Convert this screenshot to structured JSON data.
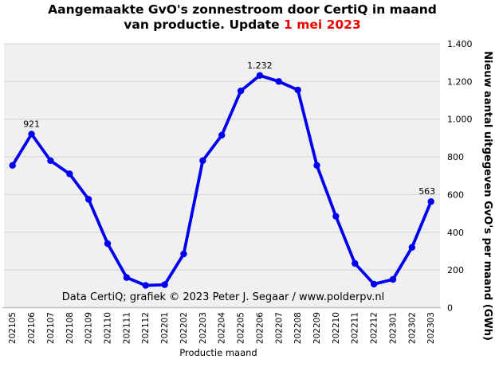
{
  "title": {
    "line1": "Aangemaakte GvO's zonnestroom door CertiQ in maand",
    "line2_prefix": "van productie. Update ",
    "line2_highlight": "1 mei 2023"
  },
  "annotation": "Data CertiQ; grafiek © 2023 Peter J. Segaar / www.polderpv.nl",
  "chart_data": {
    "type": "line",
    "title": "Aangemaakte GvO's zonnestroom door CertiQ in maand van productie. Update 1 mei 2023",
    "xlabel": "Productie maand",
    "ylabel": "Nieuw aantal uitgegeven GvO's per maand (GWh)",
    "x": [
      "202105",
      "202106",
      "202107",
      "202108",
      "202109",
      "202110",
      "202111",
      "202112",
      "202201",
      "202202",
      "202203",
      "202204",
      "202205",
      "202206",
      "202207",
      "202208",
      "202209",
      "202210",
      "202211",
      "202212",
      "202301",
      "202302",
      "202303"
    ],
    "series": [
      {
        "name": "Aangemaakte GvO's zonnestroom (GWh)",
        "values": [
          755,
          921,
          780,
          710,
          575,
          340,
          160,
          118,
          122,
          285,
          780,
          915,
          1150,
          1232,
          1200,
          1155,
          755,
          485,
          235,
          125,
          150,
          320,
          563
        ]
      }
    ],
    "point_labels": [
      {
        "month": "202106",
        "label": "921"
      },
      {
        "month": "202206",
        "label": "1.232"
      },
      {
        "month": "202303",
        "label": "563"
      }
    ],
    "ylim": [
      0,
      1400
    ],
    "ytick_step": 200,
    "ytick_labels": [
      "0",
      "200",
      "400",
      "600",
      "800",
      "1.000",
      "1.200",
      "1.400"
    ],
    "grid": true,
    "legend": "none",
    "colors": {
      "line": "#0000ee",
      "plot_bg": "#f0f0f0",
      "grid": "#d8d8d8",
      "axis": "#bfbfbf",
      "highlight": "#ee0000",
      "text": "#000000"
    }
  }
}
